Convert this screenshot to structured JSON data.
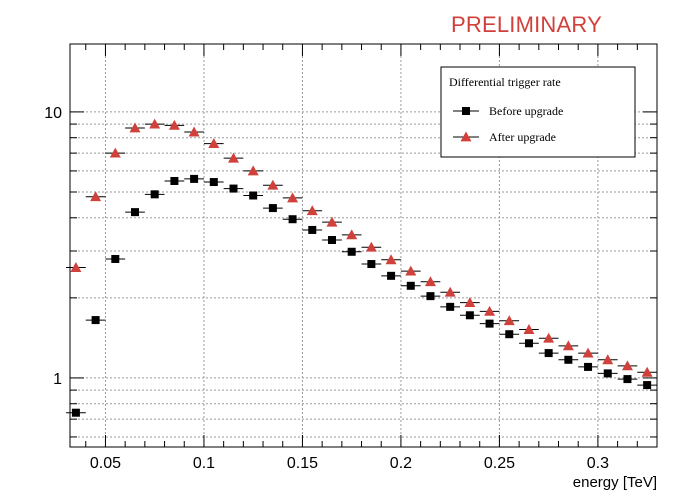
{
  "annotation": "PRELIMINARY",
  "chart_data": {
    "type": "scatter",
    "title": "",
    "xlabel": "energy [TeV]",
    "ylabel": "",
    "yscale": "log",
    "xlim": [
      0.032,
      0.33
    ],
    "ylim": [
      0.55,
      18
    ],
    "grid": true,
    "legend_title": "Differential trigger rate",
    "legend_position": "top-right",
    "x_ticks": [
      "0.05",
      "0.1",
      "0.15",
      "0.2",
      "0.25",
      "0.3"
    ],
    "x_tick_values": [
      0.05,
      0.1,
      0.15,
      0.2,
      0.25,
      0.3
    ],
    "y_ticks": [
      "1",
      "10"
    ],
    "y_tick_values": [
      1,
      10
    ],
    "x": [
      0.035,
      0.045,
      0.055,
      0.065,
      0.075,
      0.085,
      0.095,
      0.105,
      0.115,
      0.125,
      0.135,
      0.145,
      0.155,
      0.165,
      0.175,
      0.185,
      0.195,
      0.205,
      0.215,
      0.225,
      0.235,
      0.245,
      0.255,
      0.265,
      0.275,
      0.285,
      0.295,
      0.305,
      0.315,
      0.325
    ],
    "series": [
      {
        "name": "Before upgrade",
        "color": "#000000",
        "marker": "square",
        "values": [
          0.74,
          1.65,
          2.8,
          4.2,
          4.9,
          5.5,
          5.6,
          5.45,
          5.15,
          4.85,
          4.35,
          3.95,
          3.6,
          3.3,
          2.98,
          2.68,
          2.42,
          2.22,
          2.03,
          1.85,
          1.72,
          1.6,
          1.46,
          1.35,
          1.24,
          1.17,
          1.1,
          1.04,
          0.99,
          0.94
        ]
      },
      {
        "name": "After upgrade",
        "color": "#d0413b",
        "marker": "triangle",
        "values": [
          2.6,
          4.8,
          7.0,
          8.7,
          9.0,
          8.9,
          8.4,
          7.6,
          6.7,
          6.0,
          5.3,
          4.75,
          4.25,
          3.85,
          3.45,
          3.1,
          2.78,
          2.52,
          2.3,
          2.1,
          1.92,
          1.78,
          1.64,
          1.52,
          1.41,
          1.32,
          1.24,
          1.17,
          1.11,
          1.05
        ]
      }
    ]
  }
}
